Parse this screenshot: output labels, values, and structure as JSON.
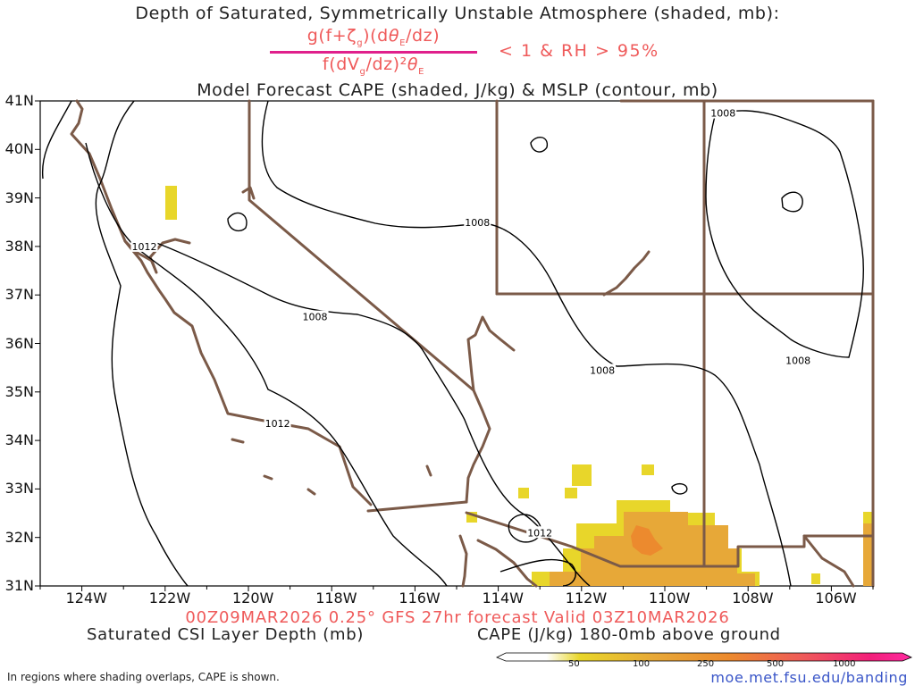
{
  "title": {
    "line1": "Depth of Saturated, Symmetrically Unstable Atmosphere (shaded, mb):",
    "numerator": "g(f+ζg)(dθE/dz)",
    "denominator": "f(dVg/dz)²θE",
    "condition": "< 1 & RH > 95%",
    "line3": "Model Forecast CAPE (shaded, J/kg) & MSLP (contour, mb)"
  },
  "map": {
    "lat_labels": [
      "41N",
      "40N",
      "39N",
      "38N",
      "37N",
      "36N",
      "35N",
      "34N",
      "33N",
      "32N",
      "31N"
    ],
    "lon_labels": [
      "124W",
      "122W",
      "120W",
      "118W",
      "116W",
      "114W",
      "112W",
      "110W",
      "108W",
      "106W"
    ],
    "lat_range": [
      31,
      41
    ],
    "lon_range": [
      -125,
      -105
    ],
    "mslp_contour_labels": [
      {
        "text": "1008",
        "lon": -108.6,
        "lat": 40.75
      },
      {
        "text": "1008",
        "lon": -114.5,
        "lat": 38.5
      },
      {
        "text": "1012",
        "lon": -122.5,
        "lat": 38.0
      },
      {
        "text": "1008",
        "lon": -118.4,
        "lat": 36.55
      },
      {
        "text": "1008",
        "lon": -111.5,
        "lat": 35.45
      },
      {
        "text": "1008",
        "lon": -106.8,
        "lat": 35.65
      },
      {
        "text": "1012",
        "lon": -119.3,
        "lat": 34.35
      },
      {
        "text": "1012",
        "lon": -113.0,
        "lat": 32.1
      }
    ],
    "colors": {
      "cape_50": "#e8d62a",
      "cape_100": "#e7a838",
      "cape_250": "#ec8a2e",
      "border": "#7b5a48",
      "contour": "#000000"
    }
  },
  "footer": {
    "valid": "00Z09MAR2026 0.25° GFS 27hr forecast Valid 03Z10MAR2026",
    "left_label": "Saturated CSI Layer Depth (mb)",
    "right_label": "CAPE (J/kg) 180-0mb above ground",
    "colorbar_ticks": [
      "50",
      "100",
      "250",
      "500",
      "1000"
    ],
    "note": "In regions where shading overlaps, CAPE is shown.",
    "url": "moe.met.fsu.edu/banding"
  }
}
